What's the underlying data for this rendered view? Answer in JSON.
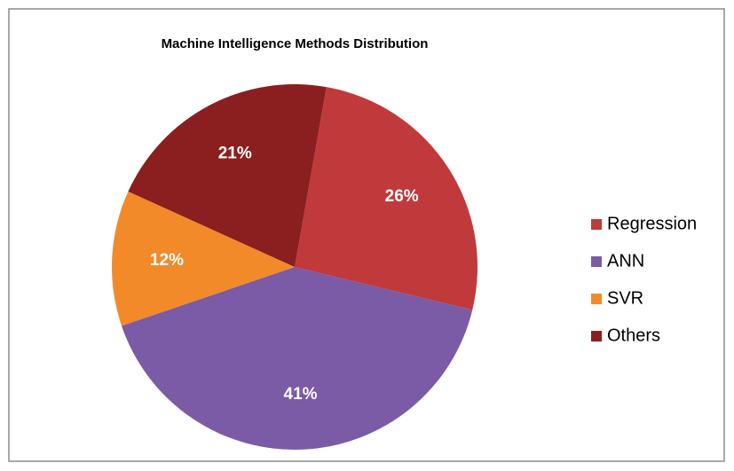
{
  "chart_data": {
    "type": "pie",
    "title": "Machine Intelligence Methods Distribution",
    "categories": [
      "Regression",
      "ANN",
      "SVR",
      "Others"
    ],
    "values": [
      26,
      41,
      12,
      21
    ],
    "value_labels": [
      "26%",
      "41%",
      "12%",
      "21%"
    ],
    "colors": [
      "#c0393b",
      "#7b5aa6",
      "#f28a2a",
      "#8b1e1e"
    ],
    "legend": "right"
  }
}
